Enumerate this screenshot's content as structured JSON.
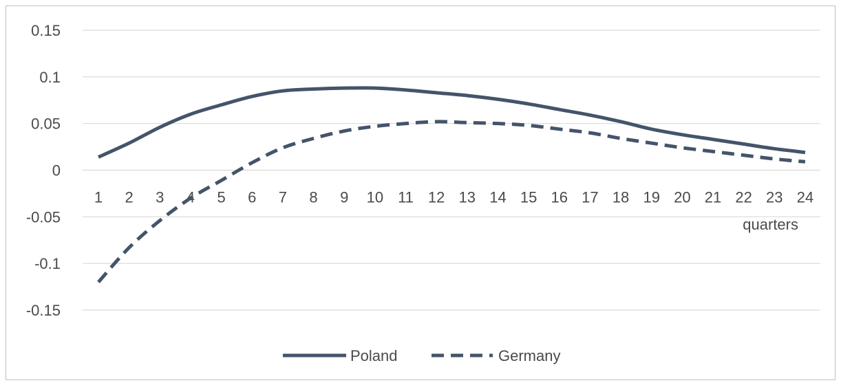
{
  "chart_data": {
    "type": "line",
    "title": "",
    "xlabel": "quarters",
    "ylabel": "",
    "categories": [
      "1",
      "2",
      "3",
      "4",
      "5",
      "6",
      "7",
      "8",
      "9",
      "10",
      "11",
      "12",
      "13",
      "14",
      "15",
      "16",
      "17",
      "18",
      "19",
      "20",
      "21",
      "22",
      "23",
      "24"
    ],
    "ylim": [
      -0.15,
      0.15
    ],
    "yticks": [
      "0.15",
      "0.1",
      "0.05",
      "0",
      "-0.05",
      "-0.1",
      "-0.15"
    ],
    "ytick_values": [
      0.15,
      0.1,
      0.05,
      0,
      -0.05,
      -0.1,
      -0.15
    ],
    "grid": true,
    "legend_position": "bottom",
    "series": [
      {
        "name": "Poland",
        "style": "solid",
        "color": "#44546a",
        "values": [
          0.014,
          0.029,
          0.046,
          0.06,
          0.07,
          0.079,
          0.085,
          0.087,
          0.088,
          0.088,
          0.086,
          0.083,
          0.08,
          0.076,
          0.071,
          0.065,
          0.059,
          0.052,
          0.044,
          0.038,
          0.033,
          0.028,
          0.023,
          0.019
        ]
      },
      {
        "name": "Germany",
        "style": "dashed",
        "color": "#44546a",
        "values": [
          -0.12,
          -0.083,
          -0.054,
          -0.03,
          -0.011,
          0.008,
          0.024,
          0.034,
          0.042,
          0.047,
          0.05,
          0.052,
          0.051,
          0.05,
          0.048,
          0.044,
          0.04,
          0.034,
          0.029,
          0.024,
          0.02,
          0.016,
          0.012,
          0.009
        ]
      }
    ]
  }
}
